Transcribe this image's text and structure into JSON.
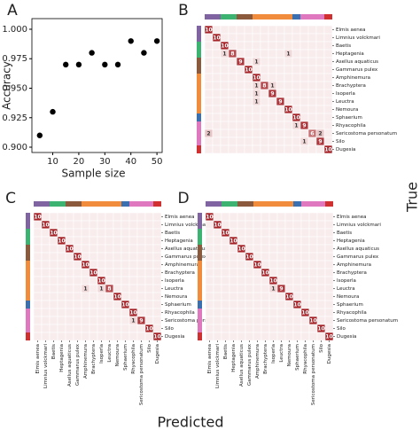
{
  "chart_data": [
    {
      "type": "scatter",
      "panel": "A",
      "x_label": "Sample size",
      "y_label": "Accuracy",
      "x": [
        5,
        10,
        15,
        20,
        25,
        30,
        35,
        40,
        45,
        50
      ],
      "values": [
        0.91,
        0.93,
        0.97,
        0.97,
        0.98,
        0.97,
        0.97,
        0.99,
        0.98,
        0.99
      ],
      "color": "#000000",
      "xlim": [
        2,
        52
      ],
      "ylim": [
        0.8955,
        1.009
      ],
      "xticks": [
        10,
        20,
        30,
        40,
        50
      ],
      "yticks": [
        {
          "value": 0.9,
          "label": "0.900"
        },
        {
          "value": 0.925,
          "label": "0.925"
        },
        {
          "value": 0.95,
          "label": "0.950"
        },
        {
          "value": 0.975,
          "label": "0.975"
        },
        {
          "value": 1.0,
          "label": "1.000"
        }
      ]
    },
    {
      "type": "heatmap",
      "panel": "B",
      "show_x_labels": false,
      "categories": [
        "Elmis aenea",
        "Limnius volckmari",
        "Baetis",
        "Heptagenia",
        "Asellus aquaticus",
        "Gammarus pulex",
        "Amphinemura",
        "Brachyptera",
        "Isoperla",
        "Leuctra",
        "Nemoura",
        "Sphaerium",
        "Rhyacophila",
        "Sericostoma personatum",
        "Silo",
        "Dugesia"
      ],
      "category_colors": [
        "#8064a2",
        "#8064a2",
        "#3cb371",
        "#3cb371",
        "#8b5a3c",
        "#8b5a3c",
        "#f08c3c",
        "#f08c3c",
        "#f08c3c",
        "#f08c3c",
        "#f08c3c",
        "#3a6fb0",
        "#e078c0",
        "#e078c0",
        "#e078c0",
        "#d03030"
      ],
      "values": [
        [
          10,
          0,
          0,
          0,
          0,
          0,
          0,
          0,
          0,
          0,
          0,
          0,
          0,
          0,
          0,
          0
        ],
        [
          0,
          10,
          0,
          0,
          0,
          0,
          0,
          0,
          0,
          0,
          0,
          0,
          0,
          0,
          0,
          0
        ],
        [
          0,
          0,
          10,
          0,
          0,
          0,
          0,
          0,
          0,
          0,
          0,
          0,
          0,
          0,
          0,
          0
        ],
        [
          0,
          0,
          1,
          8,
          0,
          0,
          0,
          0,
          0,
          0,
          1,
          0,
          0,
          0,
          0,
          0
        ],
        [
          0,
          0,
          0,
          0,
          9,
          0,
          1,
          0,
          0,
          0,
          0,
          0,
          0,
          0,
          0,
          0
        ],
        [
          0,
          0,
          0,
          0,
          0,
          10,
          0,
          0,
          0,
          0,
          0,
          0,
          0,
          0,
          0,
          0
        ],
        [
          0,
          0,
          0,
          0,
          0,
          0,
          10,
          0,
          0,
          0,
          0,
          0,
          0,
          0,
          0,
          0
        ],
        [
          0,
          0,
          0,
          0,
          0,
          0,
          1,
          8,
          1,
          0,
          0,
          0,
          0,
          0,
          0,
          0
        ],
        [
          0,
          0,
          0,
          0,
          0,
          0,
          1,
          0,
          9,
          0,
          0,
          0,
          0,
          0,
          0,
          0
        ],
        [
          0,
          0,
          0,
          0,
          0,
          0,
          1,
          0,
          0,
          9,
          0,
          0,
          0,
          0,
          0,
          0
        ],
        [
          0,
          0,
          0,
          0,
          0,
          0,
          0,
          0,
          0,
          0,
          10,
          0,
          0,
          0,
          0,
          0
        ],
        [
          0,
          0,
          0,
          0,
          0,
          0,
          0,
          0,
          0,
          0,
          0,
          10,
          0,
          0,
          0,
          0
        ],
        [
          0,
          0,
          0,
          0,
          0,
          0,
          0,
          0,
          0,
          0,
          0,
          1,
          9,
          0,
          0,
          0
        ],
        [
          2,
          0,
          0,
          0,
          0,
          0,
          0,
          0,
          0,
          0,
          0,
          0,
          0,
          6,
          2,
          0
        ],
        [
          0,
          0,
          0,
          0,
          0,
          0,
          0,
          0,
          0,
          0,
          0,
          0,
          1,
          0,
          9,
          0
        ],
        [
          0,
          0,
          0,
          0,
          0,
          0,
          0,
          0,
          0,
          0,
          0,
          0,
          0,
          0,
          0,
          10
        ]
      ],
      "vlim": [
        0,
        10
      ]
    },
    {
      "type": "heatmap",
      "panel": "C",
      "show_x_labels": true,
      "categories": [
        "Elmis aenea",
        "Limnius volckmari",
        "Baetis",
        "Heptagenia",
        "Asellus aquaticus",
        "Gammarus pulex",
        "Amphinemura",
        "Brachyptera",
        "Isoperla",
        "Leuctra",
        "Nemoura",
        "Sphaerium",
        "Rhyacophila",
        "Sericostoma personatum",
        "Silo",
        "Dugesia"
      ],
      "category_colors": [
        "#8064a2",
        "#8064a2",
        "#3cb371",
        "#3cb371",
        "#8b5a3c",
        "#8b5a3c",
        "#f08c3c",
        "#f08c3c",
        "#f08c3c",
        "#f08c3c",
        "#f08c3c",
        "#3a6fb0",
        "#e078c0",
        "#e078c0",
        "#e078c0",
        "#d03030"
      ],
      "values": [
        [
          10,
          0,
          0,
          0,
          0,
          0,
          0,
          0,
          0,
          0,
          0,
          0,
          0,
          0,
          0,
          0
        ],
        [
          0,
          10,
          0,
          0,
          0,
          0,
          0,
          0,
          0,
          0,
          0,
          0,
          0,
          0,
          0,
          0
        ],
        [
          0,
          0,
          10,
          0,
          0,
          0,
          0,
          0,
          0,
          0,
          0,
          0,
          0,
          0,
          0,
          0
        ],
        [
          0,
          0,
          0,
          10,
          0,
          0,
          0,
          0,
          0,
          0,
          0,
          0,
          0,
          0,
          0,
          0
        ],
        [
          0,
          0,
          0,
          0,
          10,
          0,
          0,
          0,
          0,
          0,
          0,
          0,
          0,
          0,
          0,
          0
        ],
        [
          0,
          0,
          0,
          0,
          0,
          10,
          0,
          0,
          0,
          0,
          0,
          0,
          0,
          0,
          0,
          0
        ],
        [
          0,
          0,
          0,
          0,
          0,
          0,
          10,
          0,
          0,
          0,
          0,
          0,
          0,
          0,
          0,
          0
        ],
        [
          0,
          0,
          0,
          0,
          0,
          0,
          0,
          10,
          0,
          0,
          0,
          0,
          0,
          0,
          0,
          0
        ],
        [
          0,
          0,
          0,
          0,
          0,
          0,
          0,
          0,
          10,
          0,
          0,
          0,
          0,
          0,
          0,
          0
        ],
        [
          0,
          0,
          0,
          0,
          0,
          0,
          1,
          0,
          1,
          8,
          0,
          0,
          0,
          0,
          0,
          0
        ],
        [
          0,
          0,
          0,
          0,
          0,
          0,
          0,
          0,
          0,
          0,
          10,
          0,
          0,
          0,
          0,
          0
        ],
        [
          0,
          0,
          0,
          0,
          0,
          0,
          0,
          0,
          0,
          0,
          0,
          10,
          0,
          0,
          0,
          0
        ],
        [
          0,
          0,
          0,
          0,
          0,
          0,
          0,
          0,
          0,
          0,
          0,
          0,
          10,
          0,
          0,
          0
        ],
        [
          0,
          0,
          0,
          0,
          0,
          0,
          0,
          0,
          0,
          0,
          0,
          0,
          1,
          9,
          0,
          0
        ],
        [
          0,
          0,
          0,
          0,
          0,
          0,
          0,
          0,
          0,
          0,
          0,
          0,
          0,
          0,
          10,
          0
        ],
        [
          0,
          0,
          0,
          0,
          0,
          0,
          0,
          0,
          0,
          0,
          0,
          0,
          0,
          0,
          0,
          10
        ]
      ],
      "vlim": [
        0,
        10
      ]
    },
    {
      "type": "heatmap",
      "panel": "D",
      "show_x_labels": true,
      "categories": [
        "Elmis aenea",
        "Limnius volckmari",
        "Baetis",
        "Heptagenia",
        "Asellus aquaticus",
        "Gammarus pulex",
        "Amphinemura",
        "Brachyptera",
        "Isoperla",
        "Leuctra",
        "Nemoura",
        "Sphaerium",
        "Rhyacophila",
        "Sericostoma personatum",
        "Silo",
        "Dugesia"
      ],
      "category_colors": [
        "#8064a2",
        "#8064a2",
        "#3cb371",
        "#3cb371",
        "#8b5a3c",
        "#8b5a3c",
        "#f08c3c",
        "#f08c3c",
        "#f08c3c",
        "#f08c3c",
        "#f08c3c",
        "#3a6fb0",
        "#e078c0",
        "#e078c0",
        "#e078c0",
        "#d03030"
      ],
      "values": [
        [
          10,
          0,
          0,
          0,
          0,
          0,
          0,
          0,
          0,
          0,
          0,
          0,
          0,
          0,
          0,
          0
        ],
        [
          0,
          10,
          0,
          0,
          0,
          0,
          0,
          0,
          0,
          0,
          0,
          0,
          0,
          0,
          0,
          0
        ],
        [
          0,
          0,
          10,
          0,
          0,
          0,
          0,
          0,
          0,
          0,
          0,
          0,
          0,
          0,
          0,
          0
        ],
        [
          0,
          0,
          0,
          10,
          0,
          0,
          0,
          0,
          0,
          0,
          0,
          0,
          0,
          0,
          0,
          0
        ],
        [
          0,
          0,
          0,
          0,
          10,
          0,
          0,
          0,
          0,
          0,
          0,
          0,
          0,
          0,
          0,
          0
        ],
        [
          0,
          0,
          0,
          0,
          0,
          10,
          0,
          0,
          0,
          0,
          0,
          0,
          0,
          0,
          0,
          0
        ],
        [
          0,
          0,
          0,
          0,
          0,
          0,
          10,
          0,
          0,
          0,
          0,
          0,
          0,
          0,
          0,
          0
        ],
        [
          0,
          0,
          0,
          0,
          0,
          0,
          0,
          10,
          0,
          0,
          0,
          0,
          0,
          0,
          0,
          0
        ],
        [
          0,
          0,
          0,
          0,
          0,
          0,
          0,
          0,
          10,
          0,
          0,
          0,
          0,
          0,
          0,
          0
        ],
        [
          0,
          0,
          0,
          0,
          0,
          0,
          0,
          0,
          1,
          9,
          0,
          0,
          0,
          0,
          0,
          0
        ],
        [
          0,
          0,
          0,
          0,
          0,
          0,
          0,
          0,
          0,
          0,
          10,
          0,
          0,
          0,
          0,
          0
        ],
        [
          0,
          0,
          0,
          0,
          0,
          0,
          0,
          0,
          0,
          0,
          0,
          10,
          0,
          0,
          0,
          0
        ],
        [
          0,
          0,
          0,
          0,
          0,
          0,
          0,
          0,
          0,
          0,
          0,
          0,
          10,
          0,
          0,
          0
        ],
        [
          0,
          0,
          0,
          0,
          0,
          0,
          0,
          0,
          0,
          0,
          0,
          0,
          0,
          10,
          0,
          0
        ],
        [
          0,
          0,
          0,
          0,
          0,
          0,
          0,
          0,
          0,
          0,
          0,
          0,
          0,
          0,
          10,
          0
        ],
        [
          0,
          0,
          0,
          0,
          0,
          0,
          0,
          0,
          0,
          0,
          0,
          0,
          0,
          0,
          0,
          10
        ]
      ],
      "vlim": [
        0,
        10
      ]
    }
  ],
  "shared_y_label": "True",
  "shared_x_label": "Predicted"
}
